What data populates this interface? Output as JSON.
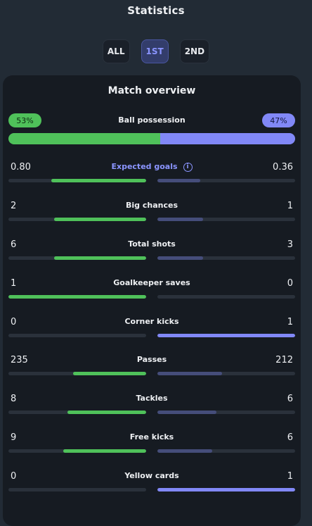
{
  "header": {
    "title": "Statistics",
    "tabs": [
      {
        "label": "ALL",
        "active": false
      },
      {
        "label": "1ST",
        "active": true
      },
      {
        "label": "2ND",
        "active": false
      }
    ]
  },
  "overview": {
    "title": "Match overview",
    "possession": {
      "label": "Ball possession",
      "home": "53%",
      "away": "47%",
      "home_fraction": 0.53
    },
    "stats": [
      {
        "label": "Expected goals",
        "home": "0.80",
        "away": "0.36",
        "home_fraction": 0.69,
        "away_fraction": 0.31,
        "info_icon": true,
        "highlight": true
      },
      {
        "label": "Big chances",
        "home": "2",
        "away": "1",
        "home_fraction": 0.67,
        "away_fraction": 0.33
      },
      {
        "label": "Total shots",
        "home": "6",
        "away": "3",
        "home_fraction": 0.67,
        "away_fraction": 0.33
      },
      {
        "label": "Goalkeeper saves",
        "home": "1",
        "away": "0",
        "home_fraction": 1.0,
        "away_fraction": 0.0
      },
      {
        "label": "Corner kicks",
        "home": "0",
        "away": "1",
        "home_fraction": 0.0,
        "away_fraction": 1.0
      },
      {
        "label": "Passes",
        "home": "235",
        "away": "212",
        "home_fraction": 0.53,
        "away_fraction": 0.47
      },
      {
        "label": "Tackles",
        "home": "8",
        "away": "6",
        "home_fraction": 0.57,
        "away_fraction": 0.43
      },
      {
        "label": "Free kicks",
        "home": "9",
        "away": "6",
        "home_fraction": 0.6,
        "away_fraction": 0.4
      },
      {
        "label": "Yellow cards",
        "home": "0",
        "away": "1",
        "home_fraction": 0.0,
        "away_fraction": 1.0
      }
    ]
  },
  "colors": {
    "home": "#4fc15a",
    "away": "#8188f7",
    "home_dim": "#3c8a45",
    "away_dim": "#454d7a",
    "track": "#2a313b"
  }
}
